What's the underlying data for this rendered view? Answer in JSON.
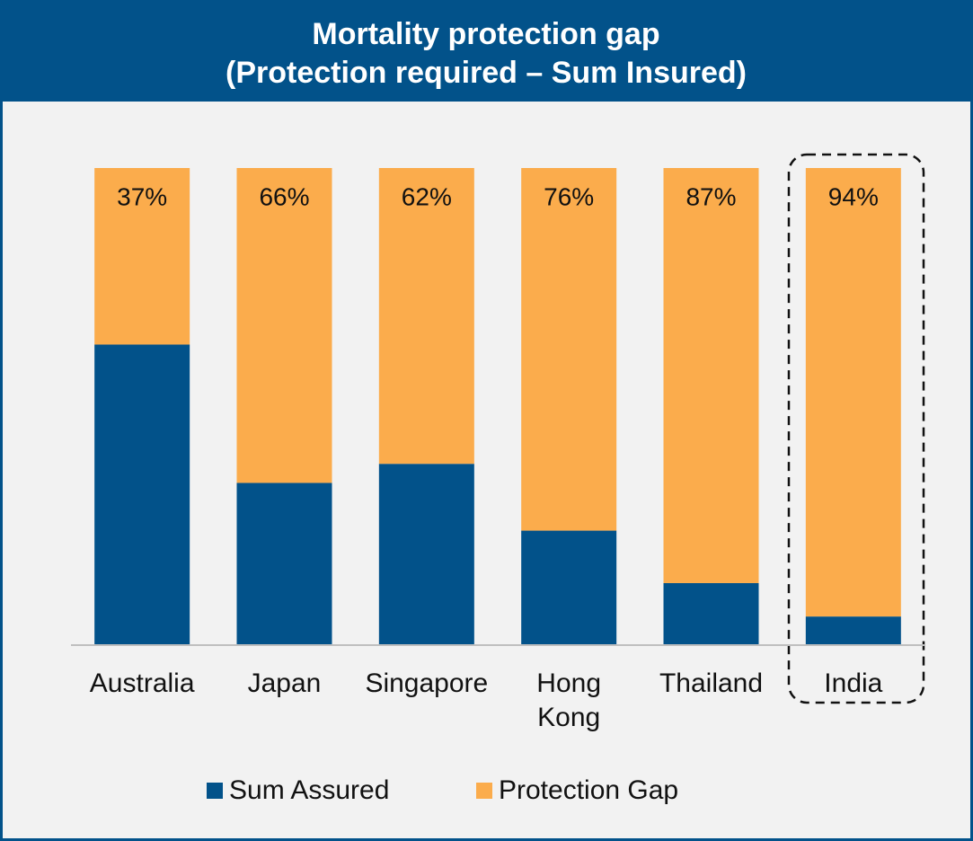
{
  "chart_data": {
    "type": "stacked_bar",
    "title": "Mortality protection gap",
    "subtitle": "(Protection required – Sum Insured)",
    "categories": [
      "Australia",
      "Japan",
      "Singapore",
      "Hong Kong",
      "Thailand",
      "India"
    ],
    "series": [
      {
        "name": "Sum Assured",
        "color": "#02528a",
        "values": [
          63,
          34,
          38,
          24,
          13,
          6
        ]
      },
      {
        "name": "Protection Gap",
        "color": "#fbac4c",
        "values": [
          37,
          66,
          62,
          76,
          87,
          94
        ],
        "value_labels": [
          "37%",
          "66%",
          "62%",
          "76%",
          "87%",
          "94%"
        ]
      }
    ],
    "ylim": [
      0,
      100
    ],
    "legend": "bottom"
  }
}
